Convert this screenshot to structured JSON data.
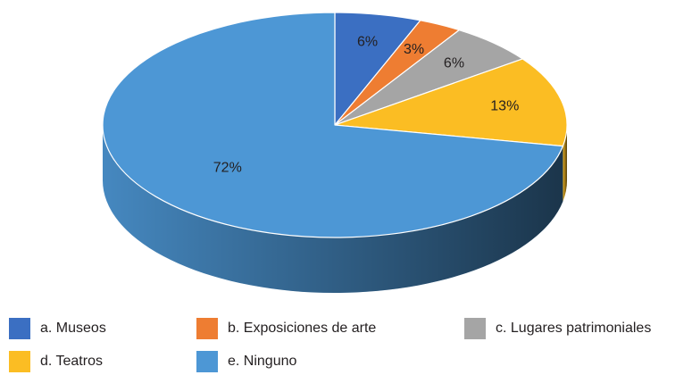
{
  "chart_data": {
    "type": "pie",
    "categories": [
      "a. Museos",
      "b. Exposiciones de arte",
      "c. Lugares patrimoniales",
      "d. Teatros",
      "e. Ninguno"
    ],
    "values": [
      6,
      3,
      6,
      13,
      72
    ],
    "value_labels": [
      "6%",
      "3%",
      "6%",
      "13%",
      "72%"
    ],
    "colors": [
      "#3b6fc2",
      "#ee7d32",
      "#a5a5a5",
      "#fbbd23",
      "#4d97d5"
    ],
    "legend": "bottom"
  }
}
